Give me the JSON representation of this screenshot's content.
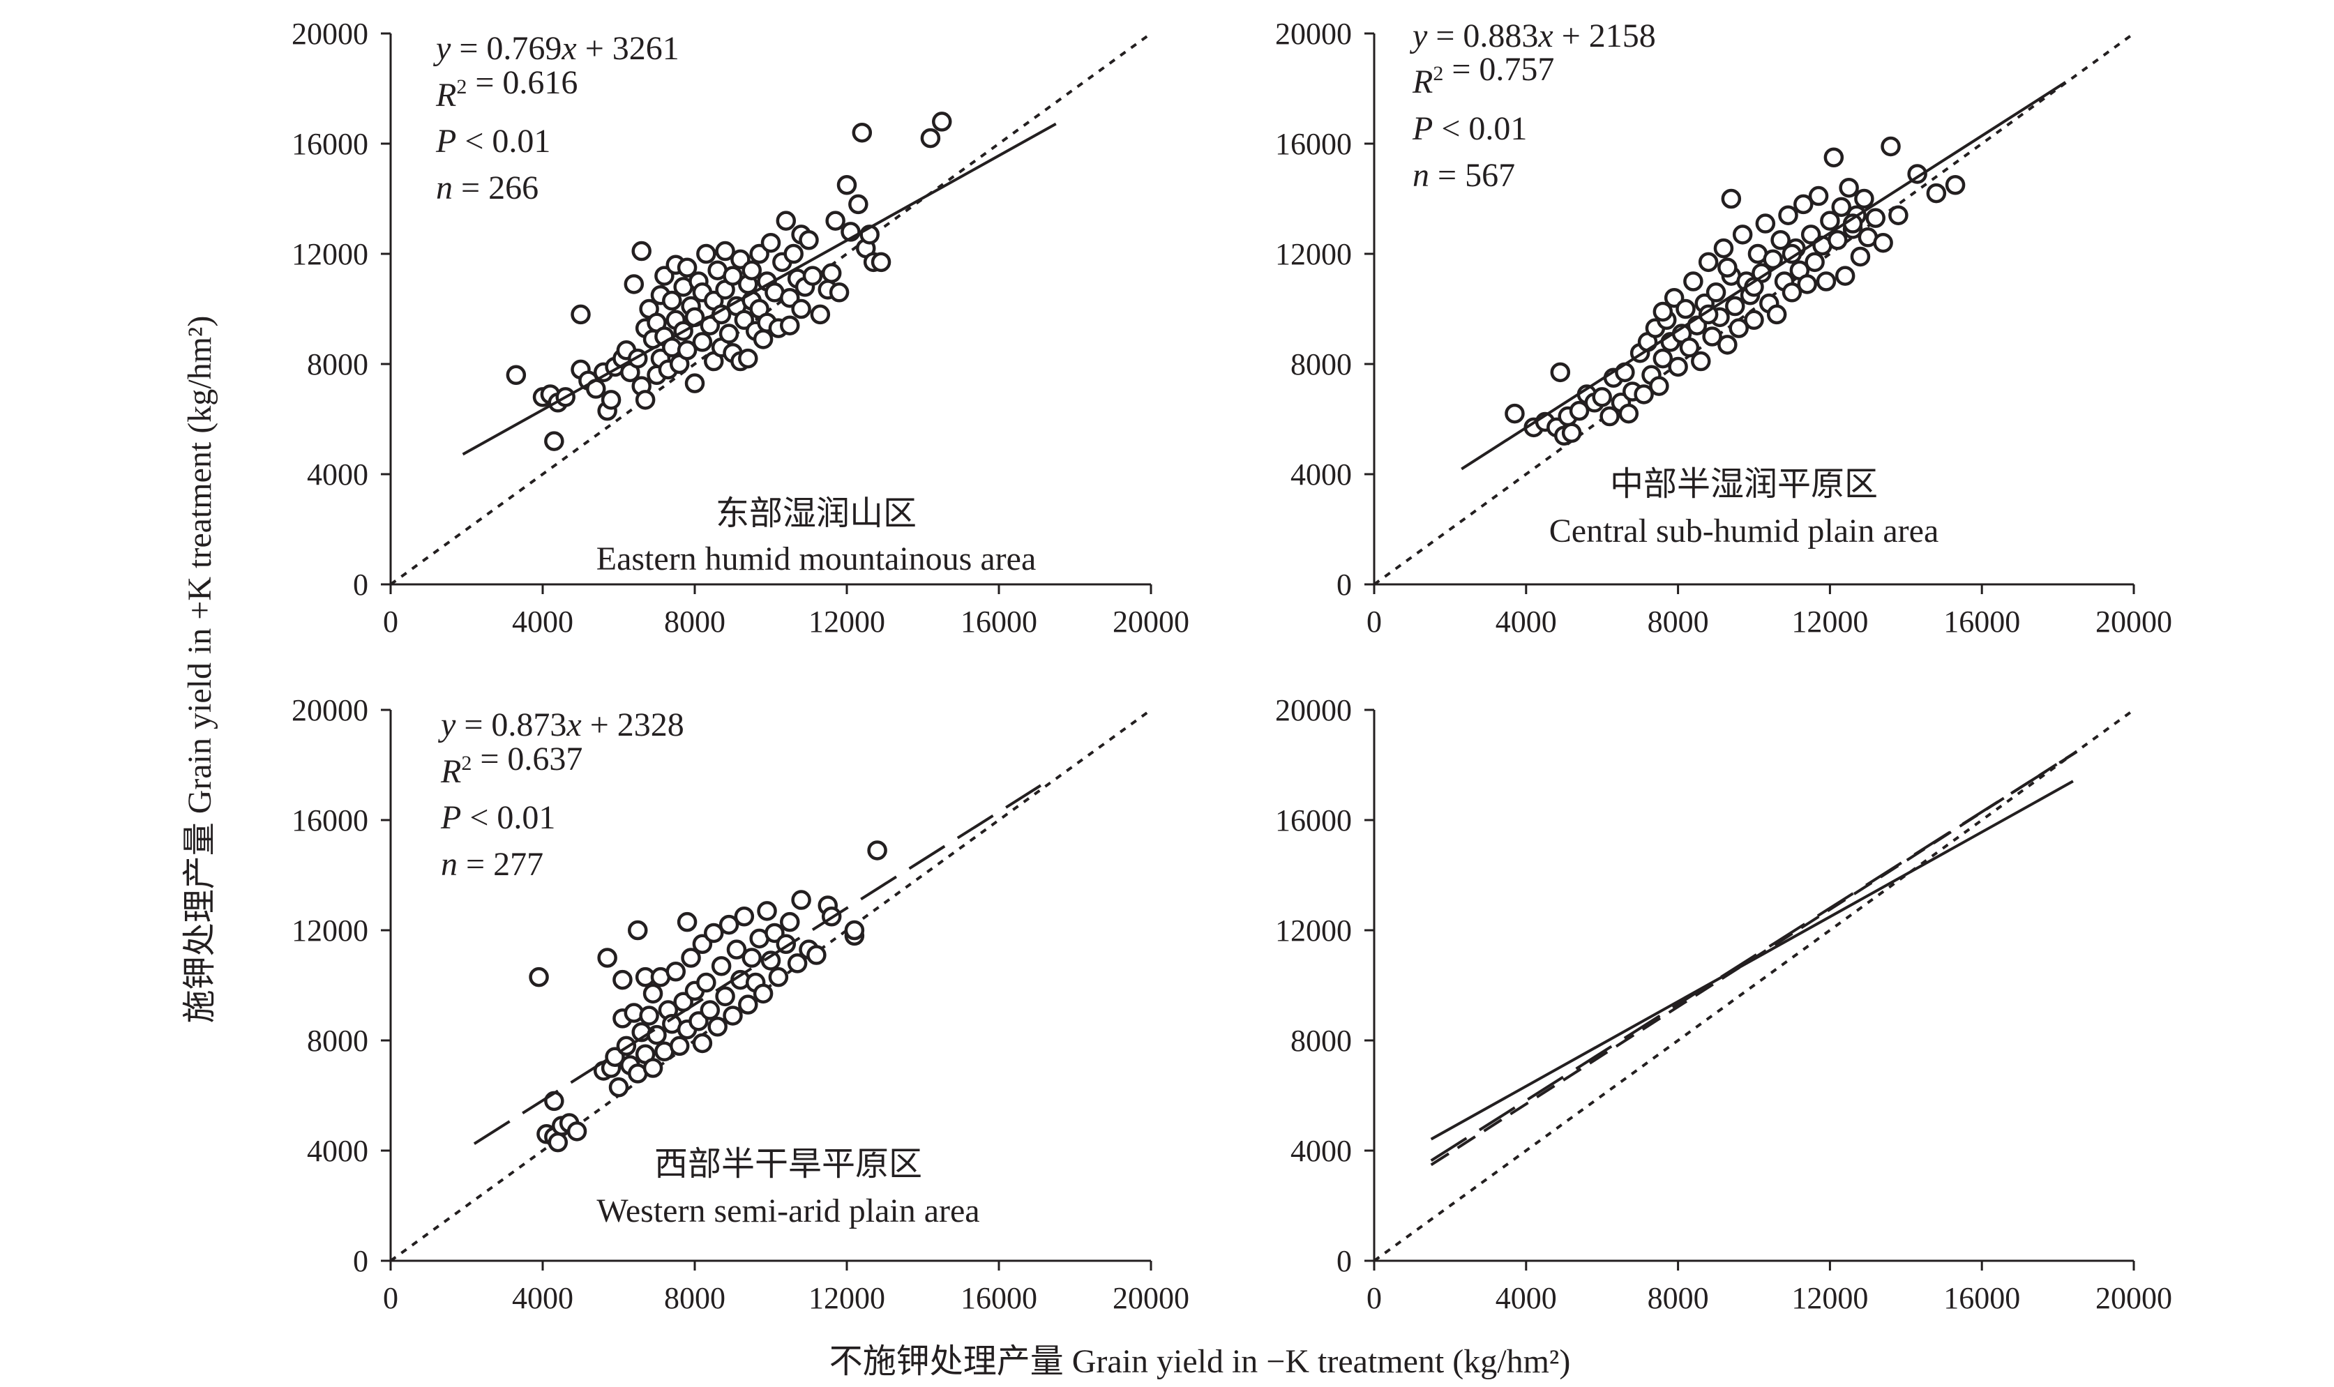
{
  "figure": {
    "x_axis_title": "不施钾处理产量 Grain yield in −K treatment (kg/hm²)",
    "y_axis_title": "施钾处理产量 Grain yield in +K treatment (kg/hm²)"
  },
  "chart_data": [
    {
      "type": "scatter",
      "panel": "top-left",
      "region_zh": "东部湿润山区",
      "region_en": "Eastern humid mountainous area",
      "equation": "y = 0.769x + 3261",
      "r2": "R² = 0.616",
      "p": "P < 0.01",
      "n": "n = 266",
      "xlim": [
        0,
        20000
      ],
      "ylim": [
        0,
        20000
      ],
      "xticks": [
        "0",
        "4000",
        "8000",
        "12000",
        "16000",
        "20000"
      ],
      "yticks": [
        "0",
        "4000",
        "8000",
        "12000",
        "16000",
        "20000"
      ],
      "regression": {
        "slope": 0.769,
        "intercept": 3261,
        "x_range": [
          1900,
          17500
        ],
        "style": "solid"
      },
      "reference_line": {
        "label": "1:1",
        "style": "dotted"
      },
      "points": [
        [
          3300,
          7600
        ],
        [
          4000,
          6800
        ],
        [
          4200,
          6900
        ],
        [
          4300,
          5200
        ],
        [
          4400,
          6600
        ],
        [
          4600,
          6800
        ],
        [
          5000,
          9800
        ],
        [
          5000,
          7800
        ],
        [
          5200,
          7400
        ],
        [
          5400,
          7100
        ],
        [
          5600,
          7700
        ],
        [
          5700,
          6300
        ],
        [
          5800,
          6700
        ],
        [
          5900,
          7900
        ],
        [
          6100,
          8200
        ],
        [
          6200,
          8500
        ],
        [
          6300,
          7700
        ],
        [
          6400,
          10900
        ],
        [
          6500,
          8200
        ],
        [
          6600,
          12100
        ],
        [
          6600,
          7200
        ],
        [
          6700,
          9300
        ],
        [
          6700,
          6700
        ],
        [
          6800,
          10000
        ],
        [
          6900,
          8900
        ],
        [
          7000,
          9500
        ],
        [
          7000,
          7600
        ],
        [
          7100,
          10500
        ],
        [
          7100,
          8200
        ],
        [
          7200,
          11200
        ],
        [
          7200,
          9000
        ],
        [
          7300,
          7800
        ],
        [
          7400,
          10300
        ],
        [
          7400,
          8600
        ],
        [
          7500,
          11600
        ],
        [
          7500,
          9600
        ],
        [
          7600,
          8000
        ],
        [
          7700,
          10800
        ],
        [
          7700,
          9200
        ],
        [
          7800,
          11500
        ],
        [
          7800,
          8500
        ],
        [
          7900,
          10100
        ],
        [
          8000,
          9700
        ],
        [
          8000,
          7300
        ],
        [
          8100,
          11000
        ],
        [
          8200,
          8800
        ],
        [
          8200,
          10600
        ],
        [
          8300,
          12000
        ],
        [
          8400,
          9400
        ],
        [
          8500,
          10300
        ],
        [
          8500,
          8100
        ],
        [
          8600,
          11400
        ],
        [
          8700,
          9800
        ],
        [
          8700,
          8600
        ],
        [
          8800,
          12100
        ],
        [
          8800,
          10700
        ],
        [
          8900,
          9100
        ],
        [
          9000,
          11200
        ],
        [
          9000,
          8400
        ],
        [
          9100,
          10100
        ],
        [
          9200,
          8100
        ],
        [
          9200,
          11800
        ],
        [
          9300,
          9600
        ],
        [
          9400,
          10900
        ],
        [
          9400,
          8200
        ],
        [
          9500,
          11400
        ],
        [
          9500,
          10300
        ],
        [
          9600,
          9200
        ],
        [
          9700,
          12000
        ],
        [
          9700,
          10000
        ],
        [
          9800,
          8900
        ],
        [
          9900,
          11000
        ],
        [
          9900,
          9500
        ],
        [
          10000,
          12400
        ],
        [
          10100,
          10600
        ],
        [
          10200,
          9300
        ],
        [
          10300,
          11700
        ],
        [
          10400,
          13200
        ],
        [
          10500,
          10400
        ],
        [
          10500,
          9400
        ],
        [
          10600,
          12000
        ],
        [
          10700,
          11100
        ],
        [
          10800,
          12700
        ],
        [
          10800,
          10000
        ],
        [
          10900,
          10800
        ],
        [
          11000,
          12500
        ],
        [
          11100,
          11200
        ],
        [
          11300,
          9800
        ],
        [
          11500,
          10700
        ],
        [
          11600,
          11300
        ],
        [
          11700,
          13200
        ],
        [
          11800,
          10600
        ],
        [
          12000,
          14500
        ],
        [
          12100,
          12800
        ],
        [
          12300,
          13800
        ],
        [
          12400,
          16400
        ],
        [
          12500,
          12200
        ],
        [
          12600,
          12700
        ],
        [
          12700,
          11700
        ],
        [
          12900,
          11700
        ],
        [
          14200,
          16200
        ],
        [
          14500,
          16800
        ]
      ]
    },
    {
      "type": "scatter",
      "panel": "top-right",
      "region_zh": "中部半湿润平原区",
      "region_en": "Central sub-humid plain area",
      "equation": "y = 0.883x + 2158",
      "r2": "R² = 0.757",
      "p": "P < 0.01",
      "n": "n = 567",
      "xlim": [
        0,
        20000
      ],
      "ylim": [
        0,
        20000
      ],
      "xticks": [
        "0",
        "4000",
        "8000",
        "12000",
        "16000",
        "20000"
      ],
      "yticks": [
        "0",
        "4000",
        "8000",
        "12000",
        "16000",
        "20000"
      ],
      "regression": {
        "slope": 0.883,
        "intercept": 2158,
        "x_range": [
          2300,
          18200
        ],
        "style": "solid"
      },
      "reference_line": {
        "label": "1:1",
        "style": "dotted"
      },
      "points": [
        [
          3700,
          6200
        ],
        [
          4200,
          5700
        ],
        [
          4500,
          5900
        ],
        [
          4800,
          5700
        ],
        [
          4900,
          7700
        ],
        [
          5000,
          5400
        ],
        [
          5100,
          6100
        ],
        [
          5200,
          5500
        ],
        [
          5400,
          6300
        ],
        [
          5600,
          6900
        ],
        [
          5800,
          6600
        ],
        [
          6000,
          6800
        ],
        [
          6200,
          6100
        ],
        [
          6300,
          7500
        ],
        [
          6500,
          6600
        ],
        [
          6600,
          7700
        ],
        [
          6700,
          6200
        ],
        [
          6800,
          7000
        ],
        [
          7000,
          8400
        ],
        [
          7100,
          6900
        ],
        [
          7200,
          8800
        ],
        [
          7300,
          7600
        ],
        [
          7400,
          9300
        ],
        [
          7500,
          7200
        ],
        [
          7600,
          8200
        ],
        [
          7700,
          9600
        ],
        [
          7800,
          8800
        ],
        [
          7900,
          10400
        ],
        [
          8000,
          7900
        ],
        [
          8100,
          9100
        ],
        [
          8200,
          10000
        ],
        [
          8300,
          8600
        ],
        [
          8400,
          11000
        ],
        [
          8500,
          9400
        ],
        [
          8600,
          8100
        ],
        [
          8700,
          10200
        ],
        [
          8800,
          11700
        ],
        [
          8900,
          9000
        ],
        [
          9000,
          10600
        ],
        [
          9100,
          9700
        ],
        [
          9200,
          12200
        ],
        [
          9300,
          8700
        ],
        [
          9400,
          11200
        ],
        [
          9400,
          14000
        ],
        [
          9500,
          10100
        ],
        [
          9600,
          9300
        ],
        [
          9700,
          12700
        ],
        [
          9800,
          11000
        ],
        [
          9900,
          10500
        ],
        [
          10000,
          9600
        ],
        [
          10100,
          12000
        ],
        [
          10200,
          11300
        ],
        [
          10300,
          13100
        ],
        [
          10400,
          10200
        ],
        [
          10500,
          11800
        ],
        [
          10600,
          9800
        ],
        [
          10700,
          12500
        ],
        [
          10800,
          11000
        ],
        [
          10900,
          13400
        ],
        [
          11000,
          10600
        ],
        [
          11100,
          12200
        ],
        [
          11200,
          11400
        ],
        [
          11300,
          13800
        ],
        [
          11400,
          10900
        ],
        [
          11500,
          12700
        ],
        [
          11600,
          11700
        ],
        [
          11700,
          14100
        ],
        [
          11800,
          12300
        ],
        [
          11900,
          11000
        ],
        [
          12000,
          13200
        ],
        [
          12100,
          15500
        ],
        [
          12200,
          12500
        ],
        [
          12300,
          13700
        ],
        [
          12400,
          11200
        ],
        [
          12500,
          14400
        ],
        [
          12600,
          12900
        ],
        [
          12700,
          13400
        ],
        [
          12800,
          11900
        ],
        [
          12900,
          14000
        ],
        [
          13000,
          12600
        ],
        [
          13200,
          13300
        ],
        [
          13400,
          12400
        ],
        [
          13600,
          15900
        ],
        [
          13800,
          13400
        ],
        [
          14300,
          14900
        ],
        [
          14800,
          14200
        ],
        [
          15300,
          14500
        ],
        [
          9300,
          11500
        ],
        [
          10000,
          10800
        ],
        [
          11000,
          12000
        ],
        [
          8800,
          9800
        ],
        [
          7600,
          9900
        ],
        [
          12600,
          13100
        ]
      ]
    },
    {
      "type": "scatter",
      "panel": "bottom-left",
      "region_zh": "西部半干旱平原区",
      "region_en": "Western semi-arid plain area",
      "equation": "y = 0.873x + 2328",
      "r2": "R² = 0.637",
      "p": "P < 0.01",
      "n": "n = 277",
      "xlim": [
        0,
        20000
      ],
      "ylim": [
        0,
        20000
      ],
      "xticks": [
        "0",
        "4000",
        "8000",
        "12000",
        "16000",
        "20000"
      ],
      "yticks": [
        "0",
        "4000",
        "8000",
        "12000",
        "16000",
        "20000"
      ],
      "regression": {
        "slope": 0.873,
        "intercept": 2328,
        "x_range": [
          2200,
          17100
        ],
        "style": "long-dash"
      },
      "reference_line": {
        "label": "1:1",
        "style": "dotted"
      },
      "points": [
        [
          3900,
          10300
        ],
        [
          4100,
          4600
        ],
        [
          4300,
          5800
        ],
        [
          4300,
          4500
        ],
        [
          4400,
          4300
        ],
        [
          4500,
          4900
        ],
        [
          4700,
          5000
        ],
        [
          4900,
          4700
        ],
        [
          5600,
          6900
        ],
        [
          5700,
          11000
        ],
        [
          5800,
          7000
        ],
        [
          5900,
          7400
        ],
        [
          6000,
          6300
        ],
        [
          6100,
          8800
        ],
        [
          6100,
          10200
        ],
        [
          6200,
          7800
        ],
        [
          6300,
          7100
        ],
        [
          6400,
          9000
        ],
        [
          6500,
          12000
        ],
        [
          6500,
          6800
        ],
        [
          6600,
          8300
        ],
        [
          6700,
          10300
        ],
        [
          6700,
          7500
        ],
        [
          6800,
          8900
        ],
        [
          6900,
          9700
        ],
        [
          6900,
          7000
        ],
        [
          7000,
          8200
        ],
        [
          7100,
          10300
        ],
        [
          7200,
          7600
        ],
        [
          7300,
          9100
        ],
        [
          7400,
          8600
        ],
        [
          7500,
          10500
        ],
        [
          7600,
          7800
        ],
        [
          7700,
          9400
        ],
        [
          7800,
          12300
        ],
        [
          7800,
          8400
        ],
        [
          7900,
          11000
        ],
        [
          8000,
          9800
        ],
        [
          8100,
          8700
        ],
        [
          8200,
          11500
        ],
        [
          8200,
          7900
        ],
        [
          8300,
          10100
        ],
        [
          8400,
          9100
        ],
        [
          8500,
          11900
        ],
        [
          8600,
          8500
        ],
        [
          8700,
          10700
        ],
        [
          8800,
          9600
        ],
        [
          8900,
          12200
        ],
        [
          9000,
          8900
        ],
        [
          9100,
          11300
        ],
        [
          9200,
          10200
        ],
        [
          9300,
          12500
        ],
        [
          9400,
          9300
        ],
        [
          9500,
          11000
        ],
        [
          9600,
          10100
        ],
        [
          9700,
          11700
        ],
        [
          9800,
          9700
        ],
        [
          9900,
          12700
        ],
        [
          10000,
          10900
        ],
        [
          10100,
          11900
        ],
        [
          10200,
          10300
        ],
        [
          10400,
          11500
        ],
        [
          10500,
          12300
        ],
        [
          10700,
          10800
        ],
        [
          10800,
          13100
        ],
        [
          11000,
          11300
        ],
        [
          11200,
          11100
        ],
        [
          11500,
          12900
        ],
        [
          11600,
          12500
        ],
        [
          12200,
          11800
        ],
        [
          12200,
          12000
        ],
        [
          12800,
          14900
        ]
      ]
    },
    {
      "type": "line",
      "panel": "bottom-right",
      "xlim": [
        0,
        20000
      ],
      "ylim": [
        0,
        20000
      ],
      "xticks": [
        "0",
        "4000",
        "8000",
        "12000",
        "16000",
        "20000"
      ],
      "yticks": [
        "0",
        "4000",
        "8000",
        "12000",
        "16000",
        "20000"
      ],
      "series": [
        {
          "slope": 0.769,
          "intercept": 3261,
          "x_range": [
            1500,
            18400
          ],
          "style": "solid"
        },
        {
          "slope": 0.883,
          "intercept": 2158,
          "x_range": [
            1500,
            18500
          ],
          "style": "medium-dash"
        },
        {
          "slope": 0.873,
          "intercept": 2328,
          "x_range": [
            1500,
            18500
          ],
          "style": "long-dash"
        },
        {
          "slope": 1.0,
          "intercept": 0,
          "x_range": [
            0,
            20000
          ],
          "style": "dotted"
        }
      ]
    }
  ]
}
